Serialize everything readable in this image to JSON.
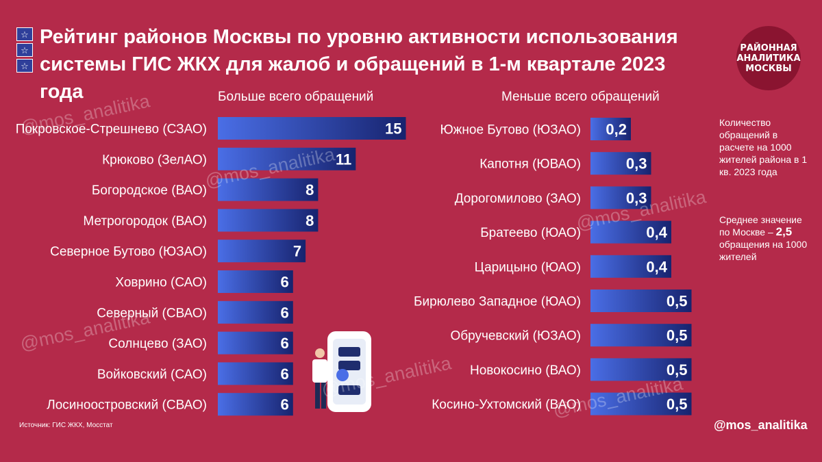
{
  "header": {
    "title_line1": "Рейтинг районов Москвы по уровню активности использования",
    "title_line2": "системы ГИС ЖКХ для жалоб и обращений в 1-м квартале 2023 года",
    "badge_line1": "РАЙОННАЯ",
    "badge_line2": "АНАЛИТИКА",
    "badge_line3": "МОСКВЫ"
  },
  "notes": {
    "unit_text": "Количество обращений в расчете на 1000 жителей района в 1 кв. 2023 года",
    "avg_prefix": "Среднее значение по Москве –",
    "avg_value": "2,5",
    "avg_suffix": "обращения на 1000 жителей"
  },
  "footer": {
    "source": "Источник: ГИС ЖКХ, Мосстат",
    "handle": "@mos_analitika"
  },
  "watermark": "@mos_analitika",
  "colors": {
    "background": "#b42a4a",
    "bar_light": "#4a6ee6",
    "bar_dark": "#17236e"
  },
  "chart_data": [
    {
      "type": "bar",
      "orientation": "horizontal",
      "title": "Больше всего обращений",
      "categories": [
        "Покровское-Стрешнево (СЗАО)",
        "Крюково (ЗелАО)",
        "Богородское (ВАО)",
        "Метрогородок (ВАО)",
        "Северное Бутово (ЮЗАО)",
        "Ховрино (САО)",
        "Северный (СВАО)",
        "Солнцево (ЗАО)",
        "Войковский (САО)",
        "Лосиноостровский (СВАО)"
      ],
      "values": [
        15,
        11,
        8,
        8,
        7,
        6,
        6,
        6,
        6,
        6
      ],
      "value_labels": [
        "15",
        "11",
        "8",
        "8",
        "7",
        "6",
        "6",
        "6",
        "6",
        "6"
      ]
    },
    {
      "type": "bar",
      "orientation": "horizontal",
      "title": "Меньше всего обращений",
      "categories": [
        "Южное Бутово (ЮЗАО)",
        "Капотня (ЮВАО)",
        "Дорогомилово (ЗАО)",
        "Братеево (ЮАО)",
        "Царицыно (ЮАО)",
        "Бирюлево Западное (ЮАО)",
        "Обручевский (ЮЗАО)",
        "Новокосино (ВАО)",
        "Косино-Ухтомский (ВАО)"
      ],
      "values": [
        0.2,
        0.3,
        0.3,
        0.4,
        0.4,
        0.5,
        0.5,
        0.5,
        0.5
      ],
      "value_labels": [
        "0,2",
        "0,3",
        "0,3",
        "0,4",
        "0,4",
        "0,5",
        "0,5",
        "0,5",
        "0,5"
      ]
    }
  ]
}
